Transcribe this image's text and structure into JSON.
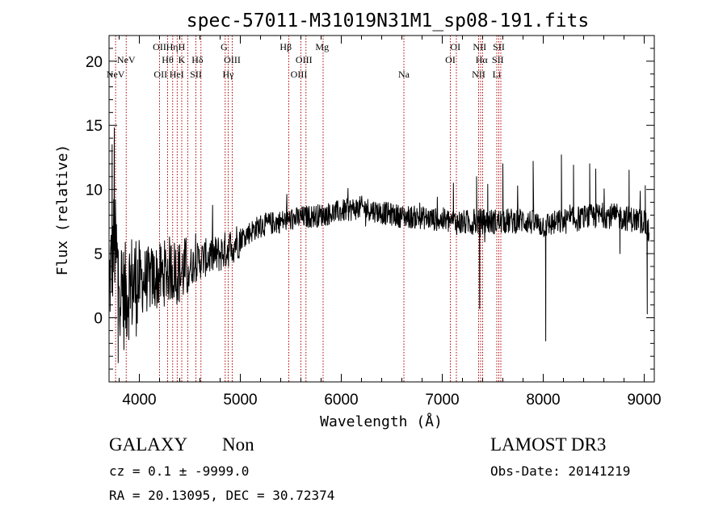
{
  "chart_data": {
    "type": "line",
    "title": "spec-57011-M31019N31M1_sp08-191.fits",
    "xlabel": "Wavelength (Å)",
    "ylabel": "Flux (relative)",
    "xlim": [
      3700,
      9100
    ],
    "ylim": [
      -5,
      22
    ],
    "xticks": [
      4000,
      5000,
      6000,
      7000,
      8000,
      9000
    ],
    "yticks": [
      0,
      5,
      10,
      15,
      20
    ],
    "spectrum_anchors": {
      "wavelength": [
        3700,
        3750,
        3800,
        3850,
        3900,
        4000,
        4100,
        4200,
        4300,
        4400,
        4500,
        4600,
        4700,
        4800,
        4900,
        5000,
        5200,
        5400,
        5600,
        5800,
        6000,
        6200,
        6400,
        6600,
        6800,
        7000,
        7200,
        7400,
        7600,
        7800,
        8000,
        8200,
        8400,
        8600,
        8800,
        9000,
        9050
      ],
      "flux": [
        2.5,
        6.0,
        3.0,
        1.5,
        2.5,
        2.8,
        3.0,
        3.2,
        3.8,
        3.5,
        4.0,
        4.5,
        4.8,
        5.0,
        5.5,
        6.2,
        7.2,
        7.5,
        7.8,
        8.0,
        8.3,
        8.6,
        8.2,
        7.9,
        7.8,
        7.6,
        7.4,
        7.5,
        7.5,
        7.6,
        7.2,
        7.5,
        7.8,
        8.0,
        7.8,
        7.5,
        6.5
      ]
    },
    "spikes": [
      {
        "wavelength": 3752,
        "flux": 14.8
      },
      {
        "wavelength": 3790,
        "flux": -3.5
      },
      {
        "wavelength": 3730,
        "flux": 13.5
      },
      {
        "wavelength": 7370,
        "flux": 0.7
      },
      {
        "wavelength": 8025,
        "flux": -1.8
      },
      {
        "wavelength": 7340,
        "flux": 11.0
      },
      {
        "wavelength": 7450,
        "flux": 10.4
      },
      {
        "wavelength": 7110,
        "flux": 10.5
      },
      {
        "wavelength": 7600,
        "flux": 12.0
      },
      {
        "wavelength": 7900,
        "flux": 12.2
      },
      {
        "wavelength": 8180,
        "flux": 12.7
      },
      {
        "wavelength": 8300,
        "flux": 11.9
      },
      {
        "wavelength": 8460,
        "flux": 12.0
      },
      {
        "wavelength": 8520,
        "flux": 11.6
      },
      {
        "wavelength": 8850,
        "flux": 11.5
      },
      {
        "wavelength": 9010,
        "flux": 10.3
      },
      {
        "wavelength": 9030,
        "flux": 0.3
      },
      {
        "wavelength": 8760,
        "flux": 5.0
      }
    ],
    "emission_lines": [
      {
        "label": "NeV",
        "wavelength": 3765,
        "row": 3
      },
      {
        "label": "NeV",
        "wavelength": 3870,
        "row": 2
      },
      {
        "label": "OII",
        "wavelength": 4200,
        "row": 1
      },
      {
        "label": "OII",
        "wavelength": 4210,
        "row": 3
      },
      {
        "label": "Hθ",
        "wavelength": 4280,
        "row": 2
      },
      {
        "label": "Hη",
        "wavelength": 4325,
        "row": 1
      },
      {
        "label": "HeI",
        "wavelength": 4370,
        "row": 3
      },
      {
        "label": "H",
        "wavelength": 4420,
        "row": 1
      },
      {
        "label": "K",
        "wavelength": 4420,
        "row": 2
      },
      {
        "label": "Hδ",
        "wavelength": 4575,
        "row": 2
      },
      {
        "label": "SII",
        "wavelength": 4560,
        "row": 3
      },
      {
        "label": "G",
        "wavelength": 4840,
        "row": 1
      },
      {
        "label": "OIII",
        "wavelength": 4920,
        "row": 2
      },
      {
        "label": "Hγ",
        "wavelength": 4880,
        "row": 3
      },
      {
        "label": "Hβ",
        "wavelength": 5450,
        "row": 1
      },
      {
        "label": "OIII",
        "wavelength": 5630,
        "row": 2
      },
      {
        "label": "OIII",
        "wavelength": 5580,
        "row": 3
      },
      {
        "label": "Mg",
        "wavelength": 5810,
        "row": 1
      },
      {
        "label": "Na",
        "wavelength": 6620,
        "row": 3
      },
      {
        "label": "OI",
        "wavelength": 7130,
        "row": 1
      },
      {
        "label": "OI",
        "wavelength": 7080,
        "row": 2
      },
      {
        "label": "NII",
        "wavelength": 7370,
        "row": 1
      },
      {
        "label": "Hα",
        "wavelength": 7390,
        "row": 2
      },
      {
        "label": "NII",
        "wavelength": 7360,
        "row": 3
      },
      {
        "label": "SII",
        "wavelength": 7560,
        "row": 1
      },
      {
        "label": "SII",
        "wavelength": 7550,
        "row": 2
      },
      {
        "label": "Li",
        "wavelength": 7540,
        "row": 3
      }
    ],
    "line_markers": [
      3765,
      3870,
      4200,
      4280,
      4330,
      4375,
      4420,
      4480,
      4560,
      4610,
      4850,
      4880,
      4920,
      5480,
      5600,
      5650,
      5820,
      6620,
      7080,
      7140,
      7360,
      7380,
      7400,
      7540,
      7560,
      7580
    ]
  },
  "info": {
    "object_class": "GALAXY",
    "subclass": "Non",
    "survey": "LAMOST DR3",
    "cz": "cz = 0.1 ± -9999.0",
    "obs_date": "Obs-Date: 20141219",
    "coords": "RA =  20.13095, DEC =  30.72374"
  }
}
